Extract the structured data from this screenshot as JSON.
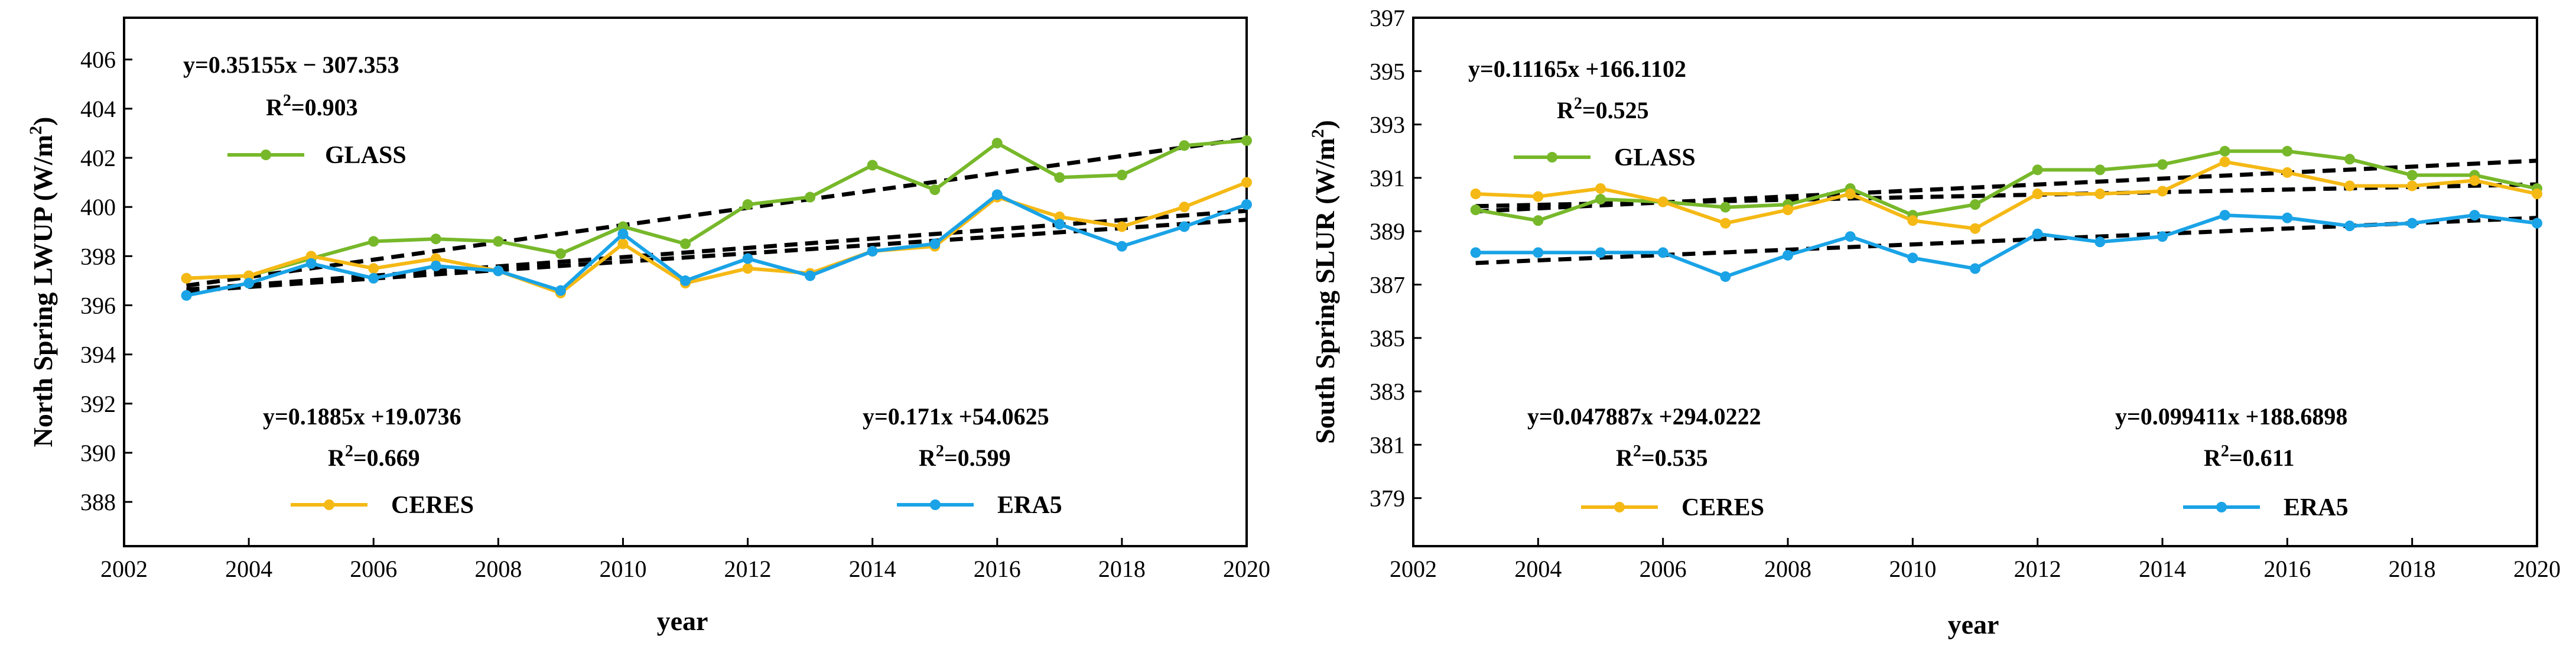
{
  "chart_data": [
    {
      "type": "line",
      "id": "north",
      "xlabel": "year",
      "ylabel": "North Spring LWUP (W/m²)",
      "xlim": [
        2002,
        2020
      ],
      "ylim": [
        386.2,
        407.7
      ],
      "xticks": [
        2002,
        2004,
        2006,
        2008,
        2010,
        2012,
        2014,
        2016,
        2018,
        2020
      ],
      "yticks": [
        388,
        390,
        392,
        394,
        396,
        398,
        400,
        402,
        404,
        406
      ],
      "x": [
        2003,
        2004,
        2005,
        2006,
        2007,
        2008,
        2009,
        2010,
        2011,
        2012,
        2013,
        2014,
        2015,
        2016,
        2017,
        2018,
        2019,
        2020
      ],
      "series": [
        {
          "name": "GLASS",
          "color": "#77b82a",
          "values": [
            397.1,
            397.2,
            397.9,
            398.6,
            398.7,
            398.6,
            398.1,
            399.2,
            398.5,
            400.1,
            400.4,
            401.7,
            400.7,
            402.6,
            401.2,
            401.3,
            402.5,
            402.7
          ],
          "trend": {
            "slope": 0.35155,
            "intercept": -307.353
          }
        },
        {
          "name": "CERES",
          "color": "#f5b915",
          "values": [
            397.1,
            397.2,
            398.0,
            397.5,
            397.9,
            397.4,
            396.5,
            398.5,
            396.9,
            397.5,
            397.3,
            398.2,
            398.4,
            400.4,
            399.6,
            399.2,
            400.0,
            401.0
          ],
          "trend": {
            "slope": 0.1885,
            "intercept": 19.0736
          }
        },
        {
          "name": "ERA5",
          "color": "#1aa3e6",
          "values": [
            396.4,
            396.9,
            397.7,
            397.1,
            397.6,
            397.4,
            396.6,
            398.9,
            397.0,
            397.9,
            397.2,
            398.2,
            398.5,
            400.5,
            399.3,
            398.4,
            399.2,
            400.1
          ],
          "trend": {
            "slope": 0.171,
            "intercept": 54.0625
          }
        }
      ],
      "annotations": {
        "glass_eq": "y=0.35155x − 307.353",
        "glass_r2_pre": "R",
        "glass_r2_sup": "2",
        "glass_r2_val": "=0.903",
        "ceres_eq": "y=0.1885x +19.0736",
        "ceres_r2_pre": "R",
        "ceres_r2_sup": "2",
        "ceres_r2_val": "=0.669",
        "era5_eq": "y=0.171x +54.0625",
        "era5_r2_pre": "R",
        "era5_r2_sup": "2",
        "era5_r2_val": "=0.599"
      }
    },
    {
      "type": "line",
      "id": "south",
      "xlabel": "year",
      "ylabel": "South Spring SLUR (W/m²)",
      "xlim": [
        2002,
        2020
      ],
      "ylim": [
        377.2,
        397
      ],
      "xticks": [
        2002,
        2004,
        2006,
        2008,
        2010,
        2012,
        2014,
        2016,
        2018,
        2020
      ],
      "yticks": [
        379,
        381,
        383,
        385,
        387,
        389,
        391,
        393,
        395,
        397
      ],
      "x": [
        2003,
        2004,
        2005,
        2006,
        2007,
        2008,
        2009,
        2010,
        2011,
        2012,
        2013,
        2014,
        2015,
        2016,
        2017,
        2018,
        2019,
        2020
      ],
      "series": [
        {
          "name": "GLASS",
          "color": "#77b82a",
          "values": [
            389.8,
            389.4,
            390.2,
            390.1,
            389.9,
            390.0,
            390.6,
            389.6,
            390.0,
            391.3,
            391.3,
            391.5,
            392.0,
            392.0,
            391.7,
            391.1,
            391.1,
            390.6
          ],
          "trend": {
            "slope": 0.11165,
            "intercept": 166.1102
          }
        },
        {
          "name": "CERES",
          "color": "#f5b915",
          "values": [
            390.4,
            390.3,
            390.6,
            390.1,
            389.3,
            389.8,
            390.4,
            389.4,
            389.1,
            390.4,
            390.4,
            390.5,
            391.6,
            391.2,
            390.7,
            390.7,
            390.9,
            390.4
          ],
          "trend": {
            "slope": 0.047887,
            "intercept": 294.0222
          }
        },
        {
          "name": "ERA5",
          "color": "#1aa3e6",
          "values": [
            388.2,
            388.2,
            388.2,
            388.2,
            387.3,
            388.1,
            388.8,
            388.0,
            387.6,
            388.9,
            388.6,
            388.8,
            389.6,
            389.5,
            389.2,
            389.3,
            389.6,
            389.3
          ],
          "trend": {
            "slope": 0.099411,
            "intercept": 188.6898
          }
        }
      ],
      "annotations": {
        "glass_eq": "y=0.11165x +166.1102",
        "glass_r2_pre": "R",
        "glass_r2_sup": "2",
        "glass_r2_val": "=0.525",
        "ceres_eq": "y=0.047887x +294.0222",
        "ceres_r2_pre": "R",
        "ceres_r2_sup": "2",
        "ceres_r2_val": "=0.535",
        "era5_eq": "y=0.099411x +188.6898",
        "era5_r2_pre": "R",
        "era5_r2_sup": "2",
        "era5_r2_val": "=0.611"
      }
    }
  ],
  "legend": {
    "glass": "GLASS",
    "ceres": "CERES",
    "era5": "ERA5"
  },
  "labels": {
    "north_ylabel_main": "North Spring LWUP (W/m",
    "south_ylabel_main": "South Spring SLUR (W/m",
    "ylabel_sup": "2",
    "ylabel_close": ")",
    "xlabel": "year"
  }
}
